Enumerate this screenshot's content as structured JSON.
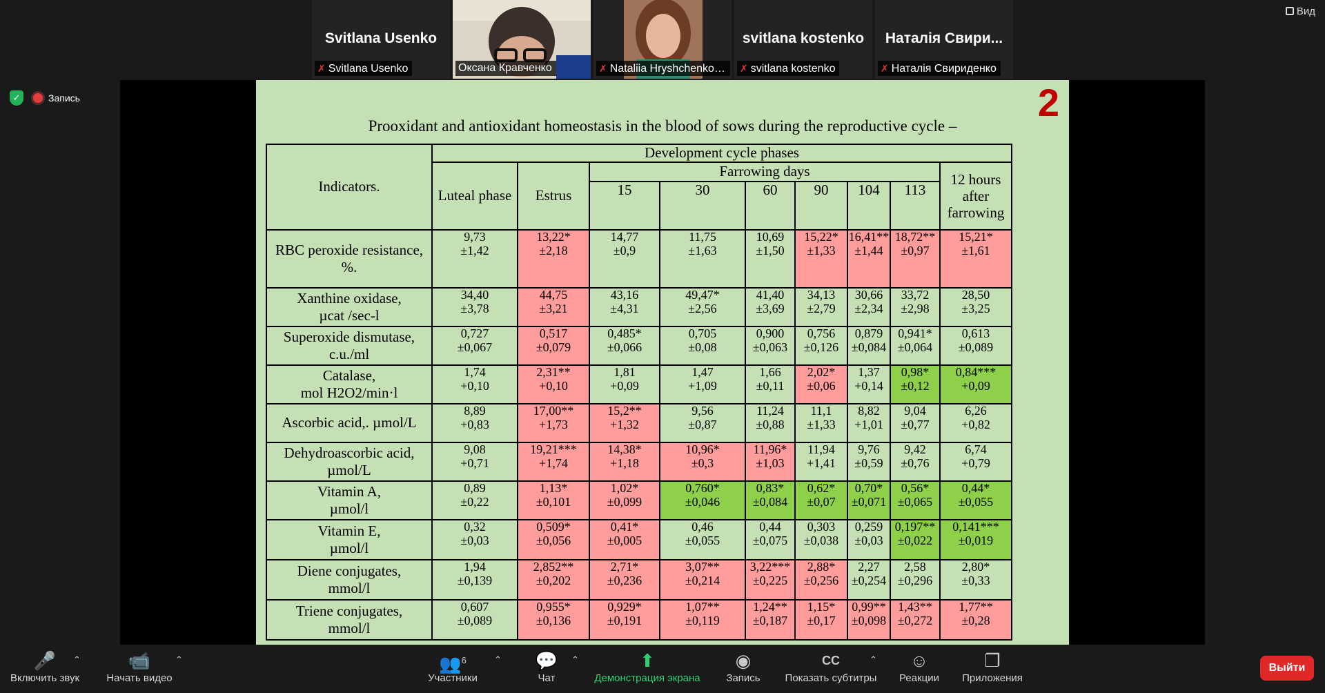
{
  "view_button": "Вид",
  "recording_label": "Запись",
  "participants": [
    {
      "big_name": "Svitlana Usenko",
      "label": "Svitlana Usenko",
      "muted": true,
      "video": false
    },
    {
      "big_name": "",
      "label": "Оксана Кравченко",
      "muted": false,
      "video": true
    },
    {
      "big_name": "",
      "label": "Nataliia Hryshchenko, ...",
      "muted": true,
      "video": true
    },
    {
      "big_name": "svitlana kostenko",
      "label": "svitlana kostenko",
      "muted": true,
      "video": false
    },
    {
      "big_name": "Наталія Свири...",
      "label": "Наталія Свириденко",
      "muted": true,
      "video": false
    }
  ],
  "slide": {
    "number": "2",
    "title": "Prooxidant and antioxidant homeostasis in the blood of sows during the reproductive cycle –",
    "header": {
      "indicators": "Indicators.",
      "group": "Development cycle phases",
      "farrowing": "Farrowing days",
      "luteal": "Luteal phase",
      "estrus": "Estrus",
      "days": [
        "15",
        "30",
        "60",
        "90",
        "104",
        "113"
      ],
      "after_l1": "12 hours",
      "after_l2": "after",
      "after_l3": "farrowing"
    },
    "rows": [
      {
        "name1": "RBC peroxide resistance,",
        "name2": "%.",
        "cells": [
          {
            "v": "9,73",
            "e": "±1,42",
            "c": ""
          },
          {
            "v": "13,22*",
            "e": "±2,18",
            "c": "red"
          },
          {
            "v": "14,77",
            "e": "±0,9",
            "c": ""
          },
          {
            "v": "11,75",
            "e": "±1,63",
            "c": ""
          },
          {
            "v": "10,69",
            "e": "±1,50",
            "c": ""
          },
          {
            "v": "15,22*",
            "e": "±1,33",
            "c": "red"
          },
          {
            "v": "16,41**",
            "e": "±1,44",
            "c": "red"
          },
          {
            "v": "18,72**",
            "e": "±0,97",
            "c": "red"
          },
          {
            "v": "15,21*",
            "e": "±1,61",
            "c": "red"
          }
        ]
      },
      {
        "name1": "Xanthine oxidase,",
        "name2": "µcat /sec-l",
        "cells": [
          {
            "v": "34,40",
            "e": "±3,78",
            "c": ""
          },
          {
            "v": "44,75",
            "e": "±3,21",
            "c": "red"
          },
          {
            "v": "43,16",
            "e": "±4,31",
            "c": ""
          },
          {
            "v": "49,47*",
            "e": "±2,56",
            "c": ""
          },
          {
            "v": "41,40",
            "e": "±3,69",
            "c": ""
          },
          {
            "v": "34,13",
            "e": "±2,79",
            "c": ""
          },
          {
            "v": "30,66",
            "e": "±2,34",
            "c": ""
          },
          {
            "v": "33,72",
            "e": "±2,98",
            "c": ""
          },
          {
            "v": "28,50",
            "e": "±3,25",
            "c": ""
          }
        ]
      },
      {
        "name1": "Superoxide dismutase,",
        "name2": "c.u./ml",
        "cells": [
          {
            "v": "0,727",
            "e": "±0,067",
            "c": ""
          },
          {
            "v": "0,517",
            "e": "±0,079",
            "c": "red"
          },
          {
            "v": "0,485*",
            "e": "±0,066",
            "c": ""
          },
          {
            "v": "0,705",
            "e": "±0,08",
            "c": ""
          },
          {
            "v": "0,900",
            "e": "±0,063",
            "c": ""
          },
          {
            "v": "0,756",
            "e": "±0,126",
            "c": ""
          },
          {
            "v": "0,879",
            "e": "±0,084",
            "c": ""
          },
          {
            "v": "0,941*",
            "e": "±0,064",
            "c": ""
          },
          {
            "v": "0,613",
            "e": "±0,089",
            "c": ""
          }
        ]
      },
      {
        "name1": "Catalase,",
        "name2": "mol H2O2/min·l",
        "cells": [
          {
            "v": "1,74",
            "e": "+0,10",
            "c": ""
          },
          {
            "v": "2,31**",
            "e": "+0,10",
            "c": "red"
          },
          {
            "v": "1,81",
            "e": "+0,09",
            "c": ""
          },
          {
            "v": "1,47",
            "e": "+1,09",
            "c": ""
          },
          {
            "v": "1,66",
            "e": "±0,11",
            "c": ""
          },
          {
            "v": "2,02*",
            "e": "±0,06",
            "c": "red"
          },
          {
            "v": "1,37",
            "e": "+0,14",
            "c": ""
          },
          {
            "v": "0,98*",
            "e": "±0,12",
            "c": "green"
          },
          {
            "v": "0,84***",
            "e": "+0,09",
            "c": "green"
          }
        ]
      },
      {
        "name1": "Ascorbic acid,. µmol/L",
        "name2": "",
        "cells": [
          {
            "v": "8,89",
            "e": "+0,83",
            "c": ""
          },
          {
            "v": "17,00**",
            "e": "+1,73",
            "c": "red"
          },
          {
            "v": "15,2**",
            "e": "+1,32",
            "c": "red"
          },
          {
            "v": "9,56",
            "e": "±0,87",
            "c": ""
          },
          {
            "v": "11,24",
            "e": "±0,88",
            "c": ""
          },
          {
            "v": "11,1",
            "e": "±1,33",
            "c": ""
          },
          {
            "v": "8,82",
            "e": "+1,01",
            "c": ""
          },
          {
            "v": "9,04",
            "e": "±0,77",
            "c": ""
          },
          {
            "v": "6,26",
            "e": "+0,82",
            "c": ""
          }
        ]
      },
      {
        "name1": "Dehydroascorbic acid,",
        "name2": "µmol/L",
        "cells": [
          {
            "v": "9,08",
            "e": "+0,71",
            "c": ""
          },
          {
            "v": "19,21***",
            "e": "+1,74",
            "c": "red"
          },
          {
            "v": "14,38*",
            "e": "+1,18",
            "c": "red"
          },
          {
            "v": "10,96*",
            "e": "±0,3",
            "c": "red"
          },
          {
            "v": "11,96*",
            "e": "±1,03",
            "c": "red"
          },
          {
            "v": "11,94",
            "e": "+1,41",
            "c": ""
          },
          {
            "v": "9,76",
            "e": "±0,59",
            "c": ""
          },
          {
            "v": "9,42",
            "e": "±0,76",
            "c": ""
          },
          {
            "v": "6,74",
            "e": "+0,79",
            "c": ""
          }
        ]
      },
      {
        "name1": "Vitamin A,",
        "name2": "µmol/l",
        "cells": [
          {
            "v": "0,89",
            "e": "±0,22",
            "c": ""
          },
          {
            "v": "1,13*",
            "e": "±0,101",
            "c": "red"
          },
          {
            "v": "1,02*",
            "e": "±0,099",
            "c": "red"
          },
          {
            "v": "0,760*",
            "e": "±0,046",
            "c": "green"
          },
          {
            "v": "0,83*",
            "e": "±0,084",
            "c": "green"
          },
          {
            "v": "0,62*",
            "e": "±0,07",
            "c": "green"
          },
          {
            "v": "0,70*",
            "e": "±0,071",
            "c": "green"
          },
          {
            "v": "0,56*",
            "e": "±0,065",
            "c": "green"
          },
          {
            "v": "0,44*",
            "e": "±0,055",
            "c": "green"
          }
        ]
      },
      {
        "name1": "Vitamin E,",
        "name2": "µmol/l",
        "cells": [
          {
            "v": "0,32",
            "e": "±0,03",
            "c": ""
          },
          {
            "v": "0,509*",
            "e": "±0,056",
            "c": "red"
          },
          {
            "v": "0,41*",
            "e": "±0,005",
            "c": "red"
          },
          {
            "v": "0,46",
            "e": "±0,055",
            "c": ""
          },
          {
            "v": "0,44",
            "e": "±0,075",
            "c": ""
          },
          {
            "v": "0,303",
            "e": "±0,038",
            "c": ""
          },
          {
            "v": "0,259",
            "e": "±0,03",
            "c": ""
          },
          {
            "v": "0,197**",
            "e": "±0,022",
            "c": "green"
          },
          {
            "v": "0,141***",
            "e": "±0,019",
            "c": "green"
          }
        ]
      },
      {
        "name1": "Diene conjugates,",
        "name2": "mmol/l",
        "cells": [
          {
            "v": "1,94",
            "e": "±0,139",
            "c": ""
          },
          {
            "v": "2,852**",
            "e": "±0,202",
            "c": "red"
          },
          {
            "v": "2,71*",
            "e": "±0,236",
            "c": "red"
          },
          {
            "v": "3,07**",
            "e": "±0,214",
            "c": "red"
          },
          {
            "v": "3,22***",
            "e": "±0,225",
            "c": "red"
          },
          {
            "v": "2,88*",
            "e": "±0,256",
            "c": "red"
          },
          {
            "v": "2,27",
            "e": "±0,254",
            "c": ""
          },
          {
            "v": "2,58",
            "e": "±0,296",
            "c": ""
          },
          {
            "v": "2,80*",
            "e": "±0,33",
            "c": ""
          }
        ]
      },
      {
        "name1": "Triene conjugates,",
        "name2": "mmol/l",
        "cells": [
          {
            "v": "0,607",
            "e": "±0,089",
            "c": ""
          },
          {
            "v": "0,955*",
            "e": "±0,136",
            "c": "red"
          },
          {
            "v": "0,929*",
            "e": "±0,191",
            "c": "red"
          },
          {
            "v": "1,07**",
            "e": "±0,119",
            "c": "red"
          },
          {
            "v": "1,24**",
            "e": "±0,187",
            "c": "red"
          },
          {
            "v": "1,15*",
            "e": "±0,17",
            "c": "red"
          },
          {
            "v": "0,99**",
            "e": "±0,098",
            "c": "red"
          },
          {
            "v": "1,43**",
            "e": "±0,272",
            "c": "red"
          },
          {
            "v": "1,77**",
            "e": "±0,28",
            "c": "red"
          }
        ]
      }
    ]
  },
  "toolbar": {
    "mute": "Включить звук",
    "video": "Начать видео",
    "participants": "Участники",
    "participants_count": "6",
    "chat": "Чат",
    "share": "Демонстрация экрана",
    "record": "Запись",
    "captions": "Показать субтитры",
    "reactions": "Реакции",
    "apps": "Приложения",
    "leave": "Выйти"
  }
}
